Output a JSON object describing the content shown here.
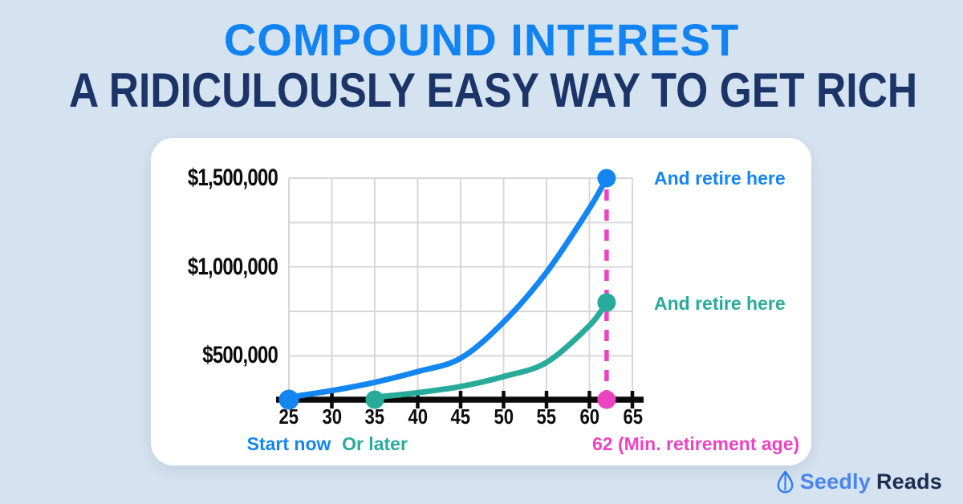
{
  "header": {
    "title_line1": "COMPOUND INTEREST",
    "title_line2": "A RIDICULOUSLY EASY WAY TO GET RICH"
  },
  "colors": {
    "background": "#d5e2ef",
    "title_blue": "#1283f2",
    "title_navy": "#1b3569",
    "text_black": "#0c0c0c",
    "grid_gray": "#d7d7d7",
    "axis_black": "#0a0a0a",
    "series_blue": "#1486f2",
    "series_teal": "#29ab9b",
    "marker_pink": "#ec43c2",
    "brand_blue": "#4a84f0",
    "brand_navy": "#1e2d52"
  },
  "chart_data": {
    "type": "line",
    "title": "",
    "grid": true,
    "legend_position": "right",
    "x_axis": {
      "min": 25,
      "max": 65,
      "tick_step": 5,
      "ticks": [
        25,
        30,
        35,
        40,
        45,
        50,
        55,
        60,
        65
      ]
    },
    "y_axis": {
      "tick_labels": [
        "$1,500,000",
        "$1,000,000",
        "$500,000"
      ],
      "labeled_values": [
        1500000,
        1000000,
        500000
      ],
      "gridline_values": [
        1500000,
        1250000,
        1000000,
        750000,
        500000
      ],
      "min": 0,
      "max": 1500000
    },
    "series": [
      {
        "name": "Start now",
        "color": "#1486f2",
        "start_age": 25,
        "retire_age": 62,
        "end_value": 1500000,
        "ages": [
          25,
          30,
          35,
          40,
          45,
          50,
          55,
          60,
          62
        ],
        "values": [
          0,
          80000,
          180000,
          310000,
          470000,
          690000,
          970000,
          1330000,
          1500000
        ],
        "end_label": "And retire here"
      },
      {
        "name": "Or later",
        "color": "#29ab9b",
        "start_age": 35,
        "retire_age": 62,
        "end_value": 800000,
        "ages": [
          35,
          40,
          45,
          50,
          55,
          60,
          62
        ],
        "values": [
          0,
          55000,
          130000,
          250000,
          420000,
          670000,
          800000
        ],
        "end_label": "And retire here"
      }
    ],
    "retirement_marker": {
      "age": 62,
      "color": "#ec43c2",
      "label": "62 (Min. retirement age)"
    },
    "annotations": {
      "blue_label": "And retire here",
      "teal_label": "And retire here",
      "caption_blue": "Start now",
      "caption_teal": "Or later",
      "caption_pink": "62 (Min. retirement age)"
    }
  },
  "footer": {
    "brand_part1": "Seedly",
    "brand_part2": "Reads"
  }
}
